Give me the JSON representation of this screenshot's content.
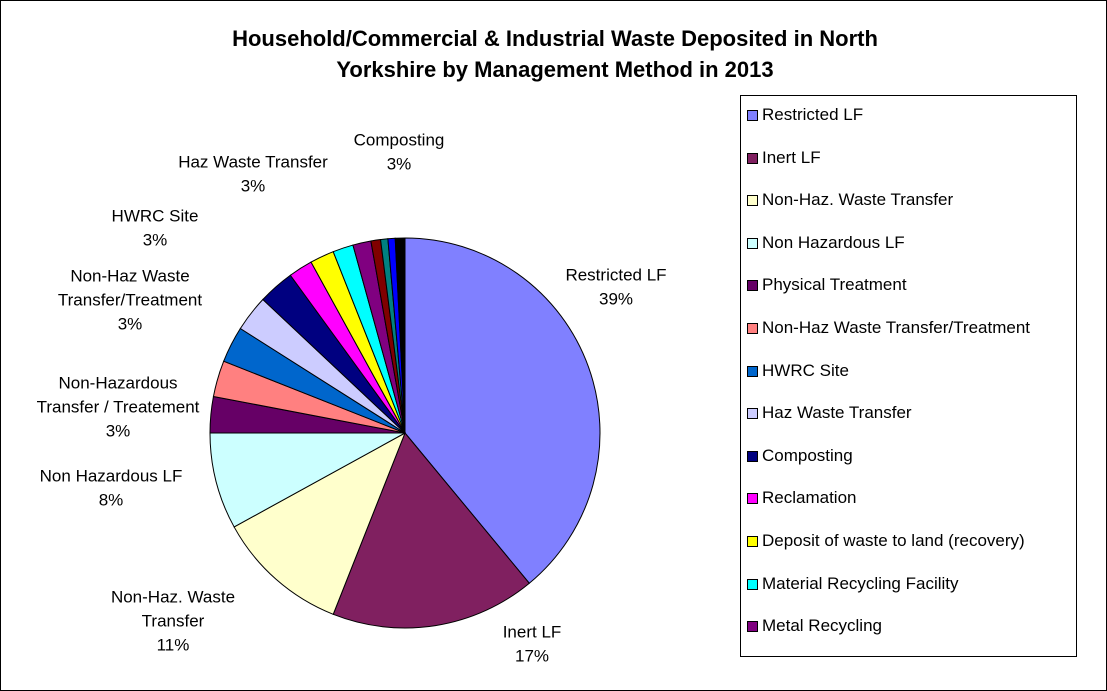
{
  "chart_data": {
    "type": "pie",
    "title": [
      "Household/Commercial & Industrial Waste Deposited in North",
      "Yorkshire by Management Method in 2013"
    ],
    "categories": [
      "Restricted LF",
      "Inert LF",
      "Non-Haz. Waste Transfer",
      "Non Hazardous LF",
      "Physical Treatment",
      "Non-Haz Waste Transfer/Treatment",
      "HWRC Site",
      "Haz Waste Transfer",
      "Composting",
      "Reclamation",
      "Deposit of waste to land (recovery)",
      "Material Recycling Facility",
      "Metal Recycling",
      null,
      null,
      null,
      null
    ],
    "values": [
      39,
      17,
      11,
      8,
      3,
      3,
      3,
      3,
      3,
      2,
      2,
      1.7,
      1.5,
      0.8,
      0.6,
      0.6,
      0.8
    ],
    "colors": [
      "#8080ff",
      "#802060",
      "#ffffcc",
      "#ccffff",
      "#660066",
      "#ff8080",
      "#0066cc",
      "#ccccff",
      "#000080",
      "#ff00ff",
      "#ffff00",
      "#00ffff",
      "#800080",
      "#800000",
      "#008080",
      "#0000ff",
      "#000000"
    ],
    "data_label_lines": [
      [
        "Restricted LF"
      ],
      [
        "Inert LF"
      ],
      [
        "Non-Haz. Waste",
        "Transfer"
      ],
      [
        "Non Hazardous LF"
      ],
      [
        "Non-Hazardous",
        "Transfer / Treatement"
      ],
      [
        "Non-Haz Waste",
        "Transfer/Treatment"
      ],
      [
        "HWRC Site"
      ],
      [
        "Haz Waste Transfer"
      ],
      [
        "Composting"
      ],
      null,
      null,
      null,
      null,
      null,
      null,
      null,
      null
    ],
    "value_labels": [
      "39%",
      "17%",
      "11%",
      "8%",
      "3%",
      "3%",
      "3%",
      "3%",
      "3%",
      null,
      null,
      null,
      null,
      null,
      null,
      null,
      null
    ],
    "legend": "right"
  }
}
